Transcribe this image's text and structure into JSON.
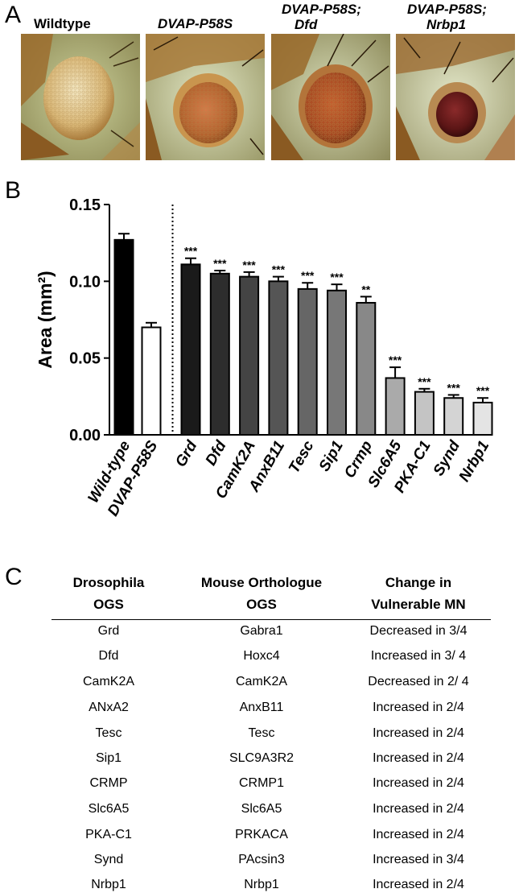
{
  "panels": {
    "a": "A",
    "b": "B",
    "c": "C"
  },
  "panel_a": {
    "photos": [
      {
        "label_lines": [
          "Wildtype"
        ],
        "italic": false,
        "eye": "wildtype"
      },
      {
        "label_lines": [
          "DVAP-P58S"
        ],
        "italic": true,
        "eye": "mutant"
      },
      {
        "label_lines": [
          "DVAP-P58S;",
          "Dfd"
        ],
        "italic": true,
        "eye": "dfd"
      },
      {
        "label_lines": [
          "DVAP-P58S;",
          "Nrbp1"
        ],
        "italic": true,
        "eye": "nrbp1"
      }
    ]
  },
  "chart_data": {
    "type": "bar",
    "ylabel": "Area (mm²)",
    "ylim": [
      0,
      0.15
    ],
    "yticks": [
      "0.00",
      "0.05",
      "0.10",
      "0.15"
    ],
    "categories": [
      "Wild-type",
      "DVAP-P58S",
      "Grd",
      "Dfd",
      "CamK2A",
      "AnxB11",
      "Tesc",
      "Sip1",
      "Crmp",
      "Slc6A5",
      "PKA-C1",
      "Synd",
      "Nrbp1"
    ],
    "values": [
      0.127,
      0.07,
      0.111,
      0.105,
      0.103,
      0.1,
      0.095,
      0.094,
      0.086,
      0.037,
      0.028,
      0.024,
      0.021
    ],
    "errors": [
      0.004,
      0.003,
      0.004,
      0.002,
      0.003,
      0.003,
      0.004,
      0.004,
      0.004,
      0.007,
      0.002,
      0.002,
      0.003
    ],
    "significance": [
      "",
      "",
      "***",
      "***",
      "***",
      "***",
      "***",
      "***",
      "**",
      "***",
      "***",
      "***",
      "***"
    ],
    "colors": [
      "#000000",
      "#ffffff",
      "#1a1a1a",
      "#2d2d2d",
      "#444444",
      "#555555",
      "#666666",
      "#777777",
      "#888888",
      "#aaaaaa",
      "#c4c4c4",
      "#d4d4d4",
      "#e4e4e4"
    ],
    "divider_after_index": 1
  },
  "table": {
    "headers": [
      [
        "Drosophila",
        "OGS"
      ],
      [
        "Mouse Orthologue",
        "OGS"
      ],
      [
        "Change in",
        "Vulnerable MN"
      ]
    ],
    "rows": [
      [
        "Grd",
        "Gabra1",
        "Decreased in 3/4"
      ],
      [
        "Dfd",
        "Hoxc4",
        "Increased in 3/ 4"
      ],
      [
        "CamK2A",
        "CamK2A",
        "Decreased in 2/ 4"
      ],
      [
        "ANxA2",
        "AnxB11",
        "Increased in 2/4"
      ],
      [
        "Tesc",
        "Tesc",
        "Increased in 2/4"
      ],
      [
        "Sip1",
        "SLC9A3R2",
        "Increased in 2/4"
      ],
      [
        "CRMP",
        "CRMP1",
        "Increased in 2/4"
      ],
      [
        "Slc6A5",
        "Slc6A5",
        "Increased in 2/4"
      ],
      [
        "PKA-C1",
        "PRKACA",
        "Increased in 2/4"
      ],
      [
        "Synd",
        "PAcsin3",
        "Increased in 3/4"
      ],
      [
        "Nrbp1",
        "Nrbp1",
        "Increased in 2/4"
      ]
    ]
  }
}
